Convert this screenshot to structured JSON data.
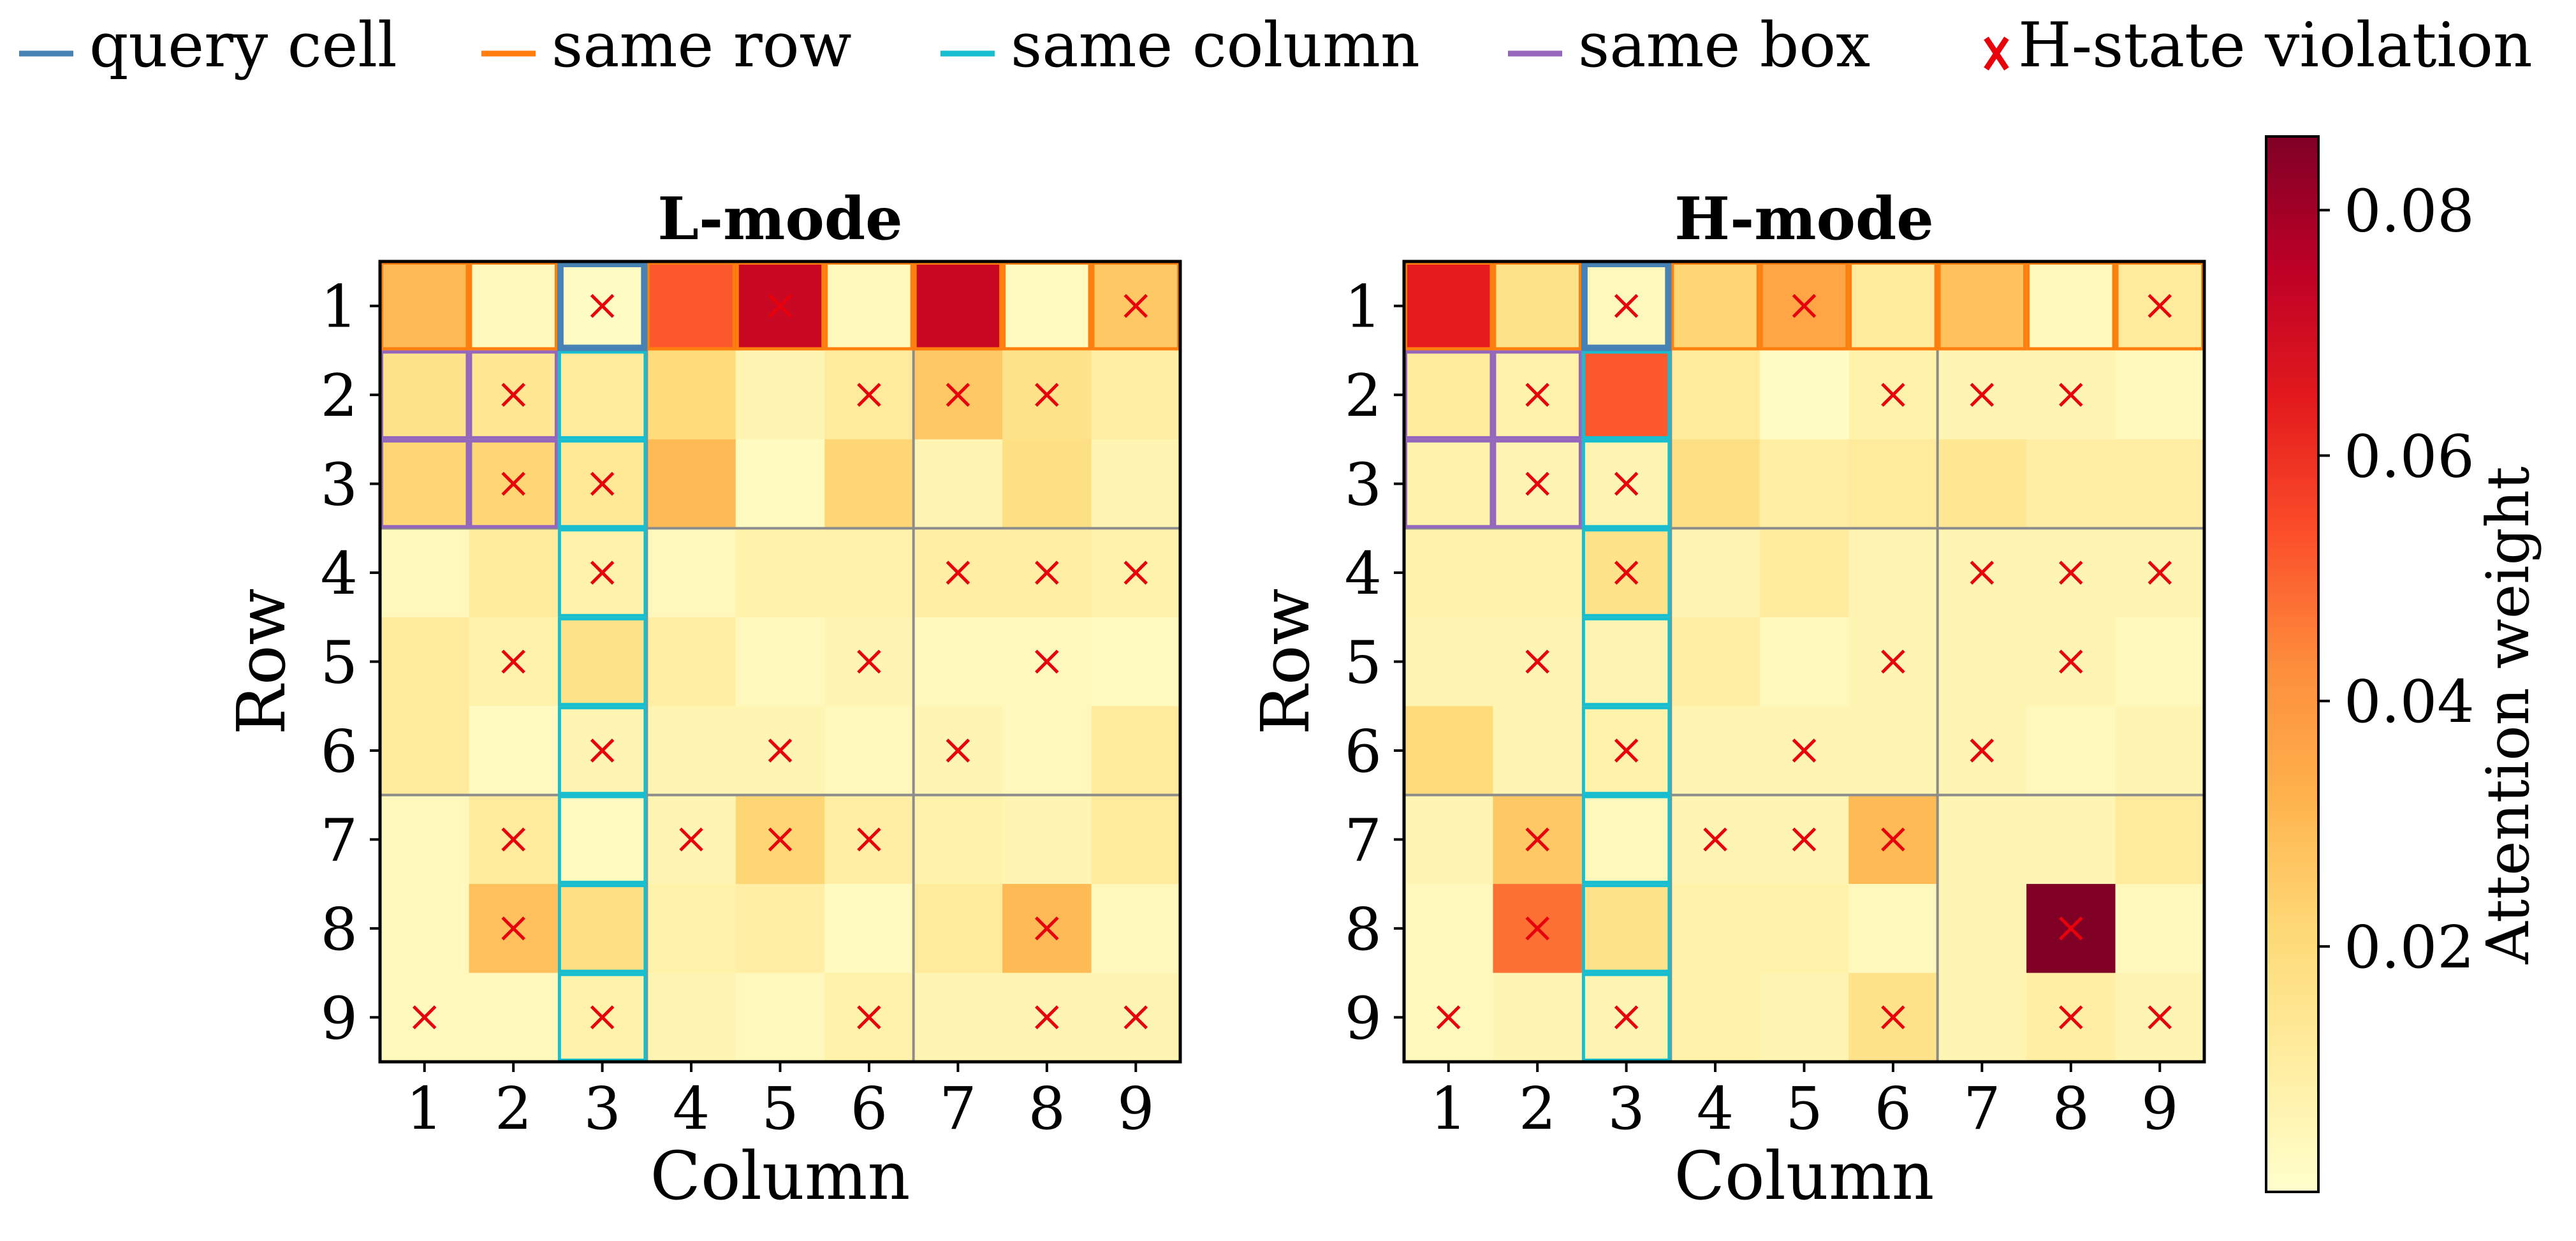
{
  "legend": {
    "placement": "top",
    "items": [
      {
        "label": "query cell",
        "color": "#4682b4",
        "kind": "line"
      },
      {
        "label": "same row",
        "color": "#ff7f0e",
        "kind": "line"
      },
      {
        "label": "same column",
        "color": "#17becf",
        "kind": "line"
      },
      {
        "label": "same box",
        "color": "#9467bd",
        "kind": "line"
      },
      {
        "label": "H-state violation",
        "color": "#e8000b",
        "kind": "cross"
      }
    ]
  },
  "chart_data": [
    {
      "type": "heatmap",
      "title": "L-mode",
      "xlabel": "Column",
      "ylabel": "Row",
      "x_ticks": [
        "1",
        "2",
        "3",
        "4",
        "5",
        "6",
        "7",
        "8",
        "9"
      ],
      "y_ticks": [
        "1",
        "2",
        "3",
        "4",
        "5",
        "6",
        "7",
        "8",
        "9"
      ],
      "query_cell": {
        "row": 1,
        "col": 3
      },
      "values": [
        [
          0.03,
          0.004,
          0.002,
          0.052,
          0.072,
          0.004,
          0.072,
          0.003,
          0.026
        ],
        [
          0.016,
          0.014,
          0.012,
          0.02,
          0.006,
          0.012,
          0.026,
          0.016,
          0.01
        ],
        [
          0.022,
          0.022,
          0.013,
          0.03,
          0.003,
          0.022,
          0.006,
          0.018,
          0.006
        ],
        [
          0.004,
          0.012,
          0.008,
          0.004,
          0.008,
          0.008,
          0.01,
          0.01,
          0.008
        ],
        [
          0.012,
          0.008,
          0.016,
          0.01,
          0.004,
          0.006,
          0.004,
          0.004,
          0.003
        ],
        [
          0.012,
          0.003,
          0.006,
          0.006,
          0.006,
          0.004,
          0.006,
          0.004,
          0.012
        ],
        [
          0.004,
          0.012,
          0.003,
          0.006,
          0.022,
          0.01,
          0.008,
          0.006,
          0.012
        ],
        [
          0.004,
          0.028,
          0.018,
          0.008,
          0.01,
          0.003,
          0.012,
          0.03,
          0.004
        ],
        [
          0.004,
          0.004,
          0.008,
          0.006,
          0.004,
          0.008,
          0.006,
          0.006,
          0.006
        ]
      ],
      "violations": [
        [
          1,
          3
        ],
        [
          1,
          5
        ],
        [
          1,
          9
        ],
        [
          2,
          2
        ],
        [
          2,
          6
        ],
        [
          2,
          7
        ],
        [
          2,
          8
        ],
        [
          3,
          2
        ],
        [
          3,
          3
        ],
        [
          4,
          3
        ],
        [
          4,
          7
        ],
        [
          4,
          8
        ],
        [
          4,
          9
        ],
        [
          5,
          2
        ],
        [
          5,
          6
        ],
        [
          5,
          8
        ],
        [
          6,
          3
        ],
        [
          6,
          5
        ],
        [
          6,
          7
        ],
        [
          7,
          2
        ],
        [
          7,
          4
        ],
        [
          7,
          5
        ],
        [
          7,
          6
        ],
        [
          8,
          2
        ],
        [
          8,
          8
        ],
        [
          9,
          1
        ],
        [
          9,
          3
        ],
        [
          9,
          6
        ],
        [
          9,
          8
        ],
        [
          9,
          9
        ]
      ]
    },
    {
      "type": "heatmap",
      "title": "H-mode",
      "xlabel": "Column",
      "ylabel": "Row",
      "x_ticks": [
        "1",
        "2",
        "3",
        "4",
        "5",
        "6",
        "7",
        "8",
        "9"
      ],
      "y_ticks": [
        "1",
        "2",
        "3",
        "4",
        "5",
        "6",
        "7",
        "8",
        "9"
      ],
      "query_cell": {
        "row": 1,
        "col": 3
      },
      "values": [
        [
          0.064,
          0.016,
          0.004,
          0.022,
          0.036,
          0.012,
          0.028,
          0.004,
          0.012
        ],
        [
          0.012,
          0.008,
          0.052,
          0.012,
          0.002,
          0.008,
          0.006,
          0.006,
          0.004
        ],
        [
          0.008,
          0.006,
          0.006,
          0.018,
          0.01,
          0.012,
          0.014,
          0.01,
          0.01
        ],
        [
          0.008,
          0.008,
          0.016,
          0.006,
          0.012,
          0.006,
          0.006,
          0.006,
          0.006
        ],
        [
          0.006,
          0.006,
          0.006,
          0.01,
          0.004,
          0.006,
          0.006,
          0.006,
          0.004
        ],
        [
          0.02,
          0.006,
          0.008,
          0.006,
          0.006,
          0.006,
          0.006,
          0.004,
          0.006
        ],
        [
          0.006,
          0.026,
          0.004,
          0.006,
          0.006,
          0.03,
          0.006,
          0.006,
          0.012
        ],
        [
          0.004,
          0.048,
          0.016,
          0.008,
          0.008,
          0.004,
          0.006,
          0.086,
          0.004
        ],
        [
          0.004,
          0.006,
          0.006,
          0.008,
          0.006,
          0.016,
          0.006,
          0.01,
          0.006
        ]
      ],
      "violations": [
        [
          1,
          3
        ],
        [
          1,
          5
        ],
        [
          1,
          9
        ],
        [
          2,
          2
        ],
        [
          2,
          6
        ],
        [
          2,
          7
        ],
        [
          2,
          8
        ],
        [
          3,
          2
        ],
        [
          3,
          3
        ],
        [
          4,
          3
        ],
        [
          4,
          7
        ],
        [
          4,
          8
        ],
        [
          4,
          9
        ],
        [
          5,
          2
        ],
        [
          5,
          6
        ],
        [
          5,
          8
        ],
        [
          6,
          3
        ],
        [
          6,
          5
        ],
        [
          6,
          7
        ],
        [
          7,
          2
        ],
        [
          7,
          4
        ],
        [
          7,
          5
        ],
        [
          7,
          6
        ],
        [
          8,
          2
        ],
        [
          8,
          8
        ],
        [
          9,
          1
        ],
        [
          9,
          3
        ],
        [
          9,
          6
        ],
        [
          9,
          8
        ],
        [
          9,
          9
        ]
      ]
    }
  ],
  "colorbar": {
    "label": "Attention weight",
    "min": 0.0,
    "max": 0.086,
    "ticks": [
      0.02,
      0.04,
      0.06,
      0.08
    ],
    "tick_labels": [
      "0.02",
      "0.04",
      "0.06",
      "0.08"
    ],
    "colormap": "YlOrRd"
  }
}
